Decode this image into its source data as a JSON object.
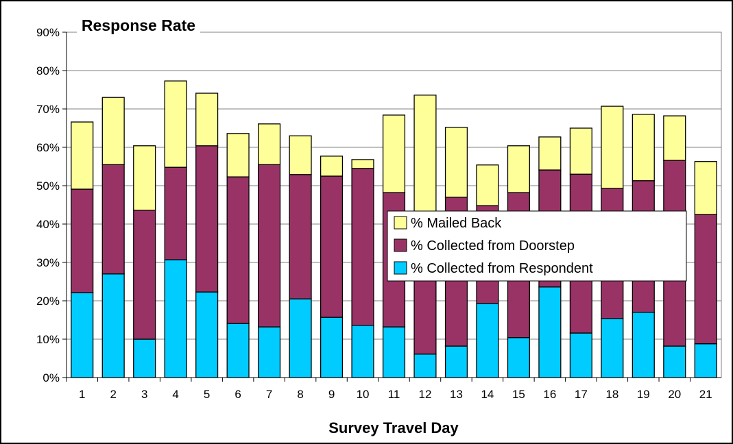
{
  "chart_data": {
    "type": "stacked_bar",
    "title": "Response Rate",
    "x_label": "Survey Travel Day",
    "categories": [
      "1",
      "2",
      "3",
      "4",
      "5",
      "6",
      "7",
      "8",
      "9",
      "10",
      "11",
      "12",
      "13",
      "14",
      "15",
      "16",
      "17",
      "18",
      "19",
      "20",
      "21"
    ],
    "series": [
      {
        "name": "% Collected from Respondent",
        "color": "#00ccff",
        "values": [
          22.1,
          27,
          10,
          30.7,
          22.3,
          14.1,
          13.2,
          20.5,
          15.7,
          13.6,
          13.2,
          6.1,
          8.2,
          19.3,
          10.4,
          23.6,
          11.6,
          15.4,
          17,
          8.2,
          8.8
        ]
      },
      {
        "name": "% Collected from Doorstep",
        "color": "#993366",
        "values": [
          27,
          28.5,
          33.6,
          24.1,
          38.1,
          38.2,
          42.3,
          32.4,
          36.8,
          40.9,
          35,
          33.9,
          38.8,
          25.5,
          37.8,
          30.5,
          41.4,
          33.9,
          34.3,
          48.4,
          33.7
        ]
      },
      {
        "name": "% Mailed Back",
        "color": "#ffff99",
        "values": [
          17.5,
          17.5,
          16.8,
          22.5,
          13.7,
          11.3,
          10.6,
          10.1,
          5.2,
          2.3,
          20.2,
          33.6,
          18.2,
          10.6,
          12.2,
          8.6,
          12,
          21.4,
          17.3,
          11.6,
          13.8
        ]
      }
    ],
    "ylim": [
      0,
      90
    ],
    "yticks": [
      {
        "value": 0,
        "label": "0%"
      },
      {
        "value": 10,
        "label": "10%"
      },
      {
        "value": 20,
        "label": "20%"
      },
      {
        "value": 30,
        "label": "30%"
      },
      {
        "value": 40,
        "label": "40%"
      },
      {
        "value": 50,
        "label": "50%"
      },
      {
        "value": 60,
        "label": "60%"
      },
      {
        "value": 70,
        "label": "70%"
      },
      {
        "value": 80,
        "label": "80%"
      },
      {
        "value": 90,
        "label": "90%"
      }
    ],
    "grid": true
  }
}
